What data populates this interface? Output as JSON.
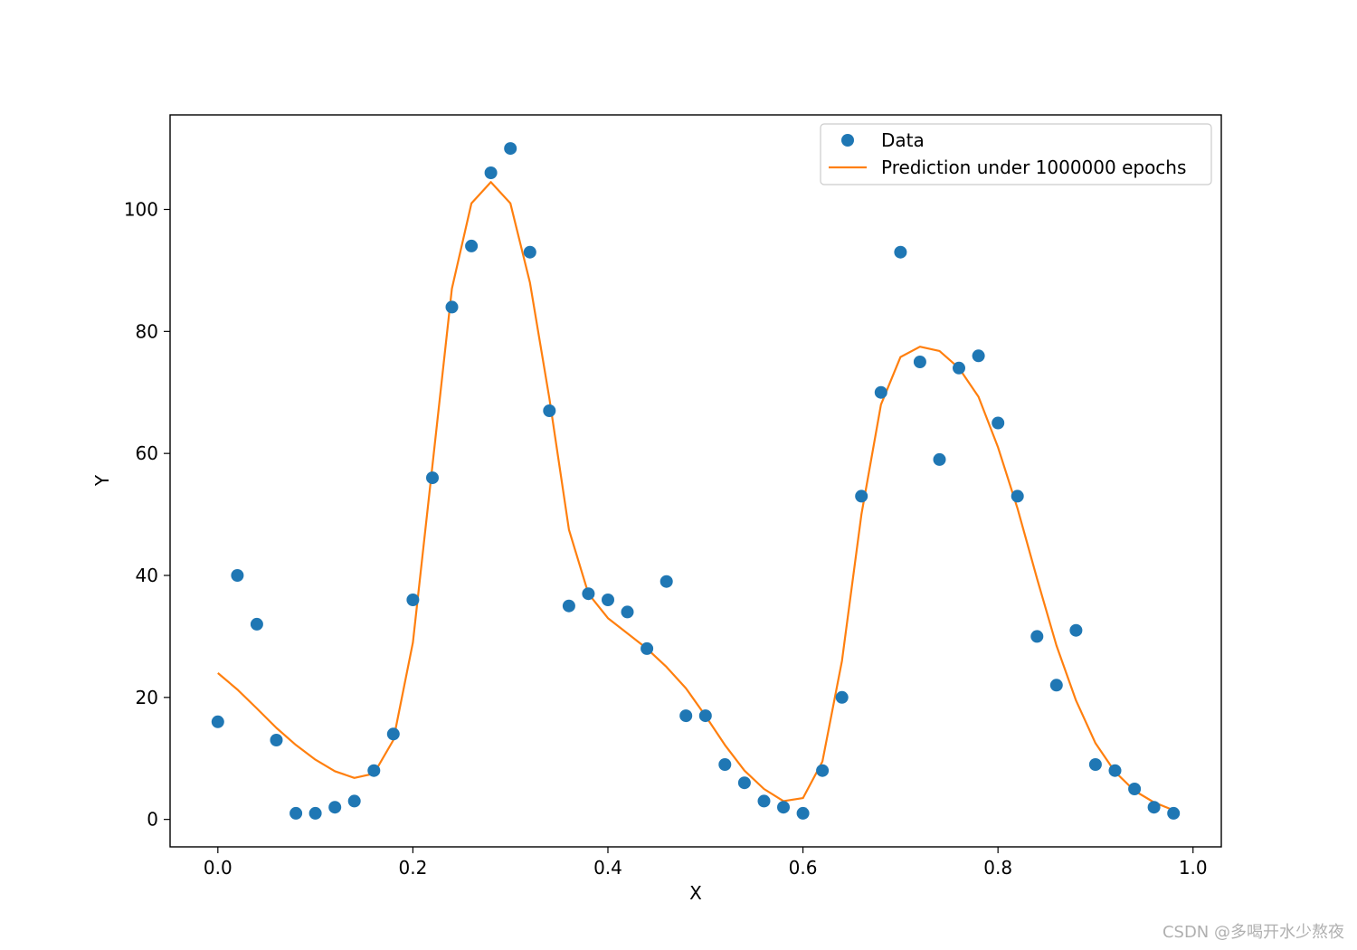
{
  "chart_data": {
    "type": "line",
    "xlabel": "X",
    "ylabel": "Y",
    "xlim": [
      -0.049,
      1.029
    ],
    "ylim": [
      -4.5,
      115.5
    ],
    "xticks": [
      0.0,
      0.2,
      0.4,
      0.6,
      0.8,
      1.0
    ],
    "xtick_labels": [
      "0.0",
      "0.2",
      "0.4",
      "0.6",
      "0.8",
      "1.0"
    ],
    "yticks": [
      0,
      20,
      40,
      60,
      80,
      100
    ],
    "ytick_labels": [
      "0",
      "20",
      "40",
      "60",
      "80",
      "100"
    ],
    "grid": false,
    "legend_position": "top-right",
    "series": [
      {
        "name": "Data",
        "kind": "scatter",
        "color": "#1f77b4",
        "x": [
          0.0,
          0.02,
          0.04,
          0.06,
          0.08,
          0.1,
          0.12,
          0.14,
          0.16,
          0.18,
          0.2,
          0.22,
          0.24,
          0.26,
          0.28,
          0.3,
          0.32,
          0.34,
          0.36,
          0.38,
          0.4,
          0.42,
          0.44,
          0.46,
          0.48,
          0.5,
          0.52,
          0.54,
          0.56,
          0.58,
          0.6,
          0.62,
          0.64,
          0.66,
          0.68,
          0.7,
          0.72,
          0.74,
          0.76,
          0.78,
          0.8,
          0.82,
          0.84,
          0.86,
          0.88,
          0.9,
          0.92,
          0.94,
          0.96,
          0.98
        ],
        "y": [
          16,
          40,
          32,
          13,
          1,
          1,
          2,
          3,
          8,
          14,
          36,
          56,
          84,
          94,
          106,
          110,
          93,
          67,
          35,
          37,
          36,
          34,
          28,
          39,
          17,
          17,
          9,
          6,
          3,
          2,
          1,
          8,
          20,
          53,
          70,
          93,
          75,
          59,
          74,
          76,
          65,
          53,
          30,
          22,
          31,
          9,
          8,
          5,
          2,
          1
        ]
      },
      {
        "name": "Prediction under 1000000 epochs",
        "kind": "line",
        "color": "#ff7f0e",
        "x": [
          0.0,
          0.02,
          0.04,
          0.06,
          0.08,
          0.1,
          0.12,
          0.14,
          0.16,
          0.18,
          0.2,
          0.22,
          0.24,
          0.26,
          0.28,
          0.3,
          0.32,
          0.34,
          0.36,
          0.38,
          0.4,
          0.42,
          0.44,
          0.46,
          0.48,
          0.5,
          0.52,
          0.54,
          0.56,
          0.58,
          0.6,
          0.62,
          0.64,
          0.66,
          0.68,
          0.7,
          0.72,
          0.74,
          0.76,
          0.78,
          0.8,
          0.82,
          0.84,
          0.86,
          0.88,
          0.9,
          0.92,
          0.94,
          0.96,
          0.98
        ],
        "y": [
          24,
          21.3,
          18.2,
          15,
          12.2,
          9.8,
          7.9,
          6.8,
          7.5,
          13,
          29,
          58,
          87,
          101,
          104.5,
          101,
          88,
          69,
          47.5,
          37,
          33,
          30.5,
          28,
          25,
          21.5,
          17,
          12.2,
          8,
          5,
          3,
          3.5,
          9.5,
          26,
          50,
          68,
          75.8,
          77.5,
          76.8,
          74,
          69.3,
          61,
          51,
          39.5,
          28.5,
          19.5,
          12.5,
          7.8,
          4.7,
          2.8,
          1.5
        ]
      }
    ]
  },
  "watermark": "CSDN @多喝开水少熬夜"
}
